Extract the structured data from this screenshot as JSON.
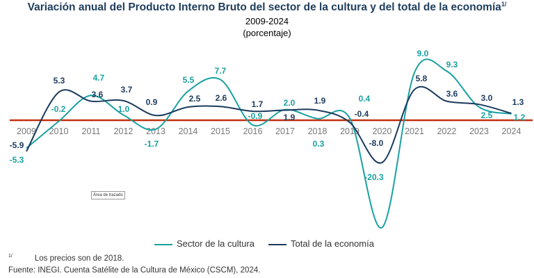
{
  "chart_data": {
    "type": "line",
    "title": "Variación anual del Producto Interno Bruto del sector de la cultura y del total de la economía",
    "title_note": "1/",
    "subtitle": "2009-2024",
    "unit_note": "(porcentaje)",
    "categories": [
      "2009",
      "2010",
      "2011",
      "2012",
      "2013",
      "2014",
      "2015",
      "2016",
      "2017",
      "2018",
      "2019",
      "2020",
      "2021",
      "2022",
      "2023",
      "2024"
    ],
    "series": [
      {
        "name": "Sector de la cultura",
        "color": "#1aa0a0",
        "values": [
          -5.3,
          -0.2,
          4.7,
          1.0,
          -1.7,
          5.5,
          7.7,
          -0.9,
          2.0,
          0.3,
          0.4,
          -20.3,
          9.0,
          9.3,
          2.5,
          1.2
        ]
      },
      {
        "name": "Total de la economía",
        "color": "#1b3a5e",
        "values": [
          -5.9,
          5.3,
          3.6,
          3.7,
          0.9,
          2.5,
          2.6,
          1.7,
          1.9,
          1.9,
          -0.4,
          -8.0,
          5.8,
          3.6,
          3.0,
          1.3
        ]
      }
    ],
    "zero_line_color": "#c0300f",
    "grid": false,
    "legend": "bottom"
  },
  "tooltip": "Área de trazado",
  "footnotes": {
    "mark": "1/",
    "note": "Los precios son de 2018.",
    "source_label": "Fuente:",
    "source": "INEGI. Cuenta Satélite de la Cultura de México (CSCM), 2024."
  }
}
